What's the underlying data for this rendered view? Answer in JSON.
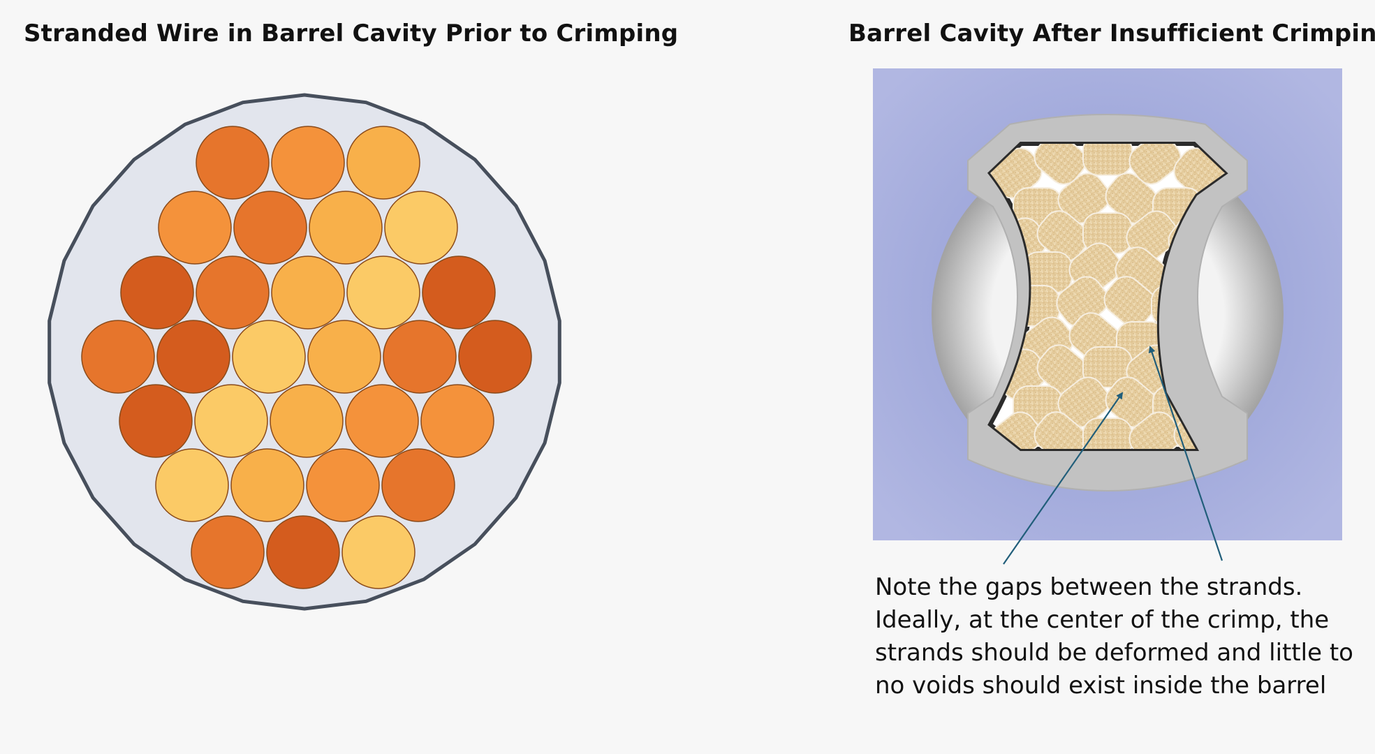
{
  "left_panel": {
    "title": "Stranded Wire in Barrel Cavity Prior to Crimping",
    "strand_colors": [
      "#e6752c",
      "#f4923b",
      "#f8b04a",
      "#fbca66",
      "#d45c1e"
    ]
  },
  "right_panel": {
    "title": "Barrel Cavity After Insufficient Crimping",
    "note": "Note the gaps between the strands. Ideally, at the center of the crimp, the strands should be deformed and little to no voids should exist  inside the barrel",
    "colors": {
      "background": "#a6afdb",
      "barrel": "#c4c4c4",
      "strand": "#e9d2a6",
      "arrow": "#215e7a"
    }
  }
}
